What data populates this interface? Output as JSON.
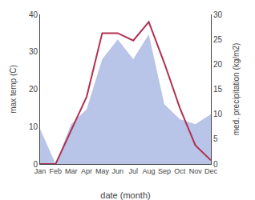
{
  "chart_data": {
    "type": "line",
    "categories": [
      "Jan",
      "Feb",
      "Mar",
      "Apr",
      "May",
      "Jun",
      "Jul",
      "Aug",
      "Sep",
      "Oct",
      "Nov",
      "Dec"
    ],
    "series": [
      {
        "type": "area",
        "color": "#b8c4e8",
        "axis": "y2",
        "values": [
          7,
          0,
          8,
          11,
          21,
          25,
          21,
          26,
          12,
          9,
          8,
          10
        ]
      },
      {
        "type": "line",
        "color": "#b03050",
        "values": [
          0,
          0,
          9,
          18,
          35,
          35,
          33,
          38,
          27,
          15,
          5,
          1
        ]
      }
    ],
    "xlabel": "date (month)",
    "ylabel": "max temp (C)",
    "y2label": "med. precipitation (kg/m2)",
    "ylim": [
      0,
      40
    ],
    "yticks": [
      0,
      10,
      20,
      30,
      40
    ],
    "y2lim": [
      0,
      30
    ],
    "y2ticks": [
      0,
      5,
      10,
      15,
      20,
      25,
      30
    ],
    "grid": false
  }
}
